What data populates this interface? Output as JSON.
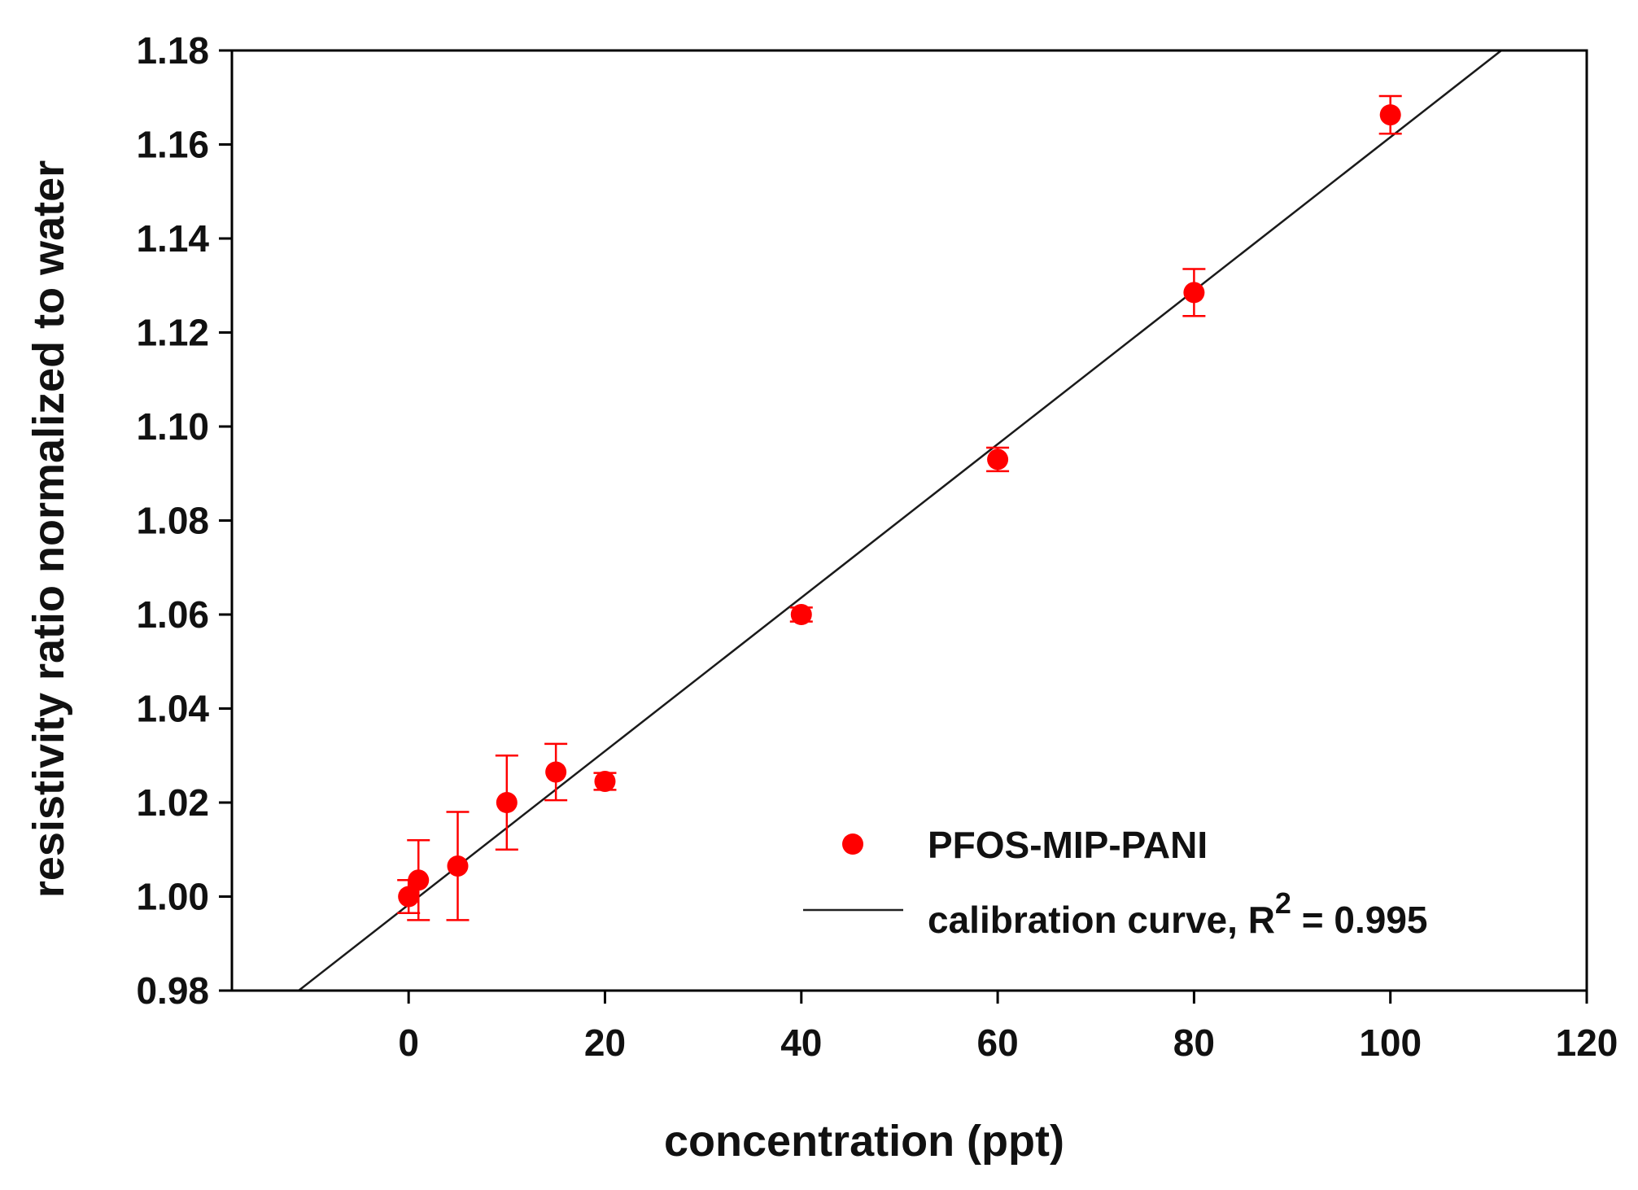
{
  "chart_data": {
    "type": "scatter",
    "title": "",
    "xlabel": "concentration (ppt)",
    "ylabel": "resistivity ratio normalized to water",
    "xlim": [
      -18,
      120
    ],
    "ylim": [
      0.98,
      1.18
    ],
    "xticks": [
      0,
      20,
      40,
      60,
      80,
      100,
      120
    ],
    "xtick_labels": [
      "0",
      "20",
      "40",
      "60",
      "80",
      "100",
      "120"
    ],
    "yticks": [
      0.98,
      1.0,
      1.02,
      1.04,
      1.06,
      1.08,
      1.1,
      1.12,
      1.14,
      1.16,
      1.18
    ],
    "ytick_labels": [
      "0.98",
      "1.00",
      "1.02",
      "1.04",
      "1.06",
      "1.08",
      "1.10",
      "1.12",
      "1.14",
      "1.16",
      "1.18"
    ],
    "grid": false,
    "legend_position": "bottom-right",
    "series": [
      {
        "name": "PFOS-MIP-PANI",
        "kind": "scatter-errorbar",
        "color": "#ff0000",
        "x": [
          0,
          1,
          5,
          10,
          15,
          20,
          40,
          60,
          80,
          100
        ],
        "y": [
          1.0,
          1.0035,
          1.0065,
          1.02,
          1.0265,
          1.0245,
          1.06,
          1.093,
          1.1285,
          1.1663
        ],
        "err": [
          0.0035,
          0.0085,
          0.0115,
          0.01,
          0.006,
          0.0018,
          0.0015,
          0.0025,
          0.005,
          0.004
        ]
      },
      {
        "name": "calibration curve, R",
        "name_superscript": "2",
        "name_suffix": " = 0.995",
        "kind": "line",
        "color": "#000000",
        "x": [
          -11.2,
          111.3
        ],
        "y": [
          0.98,
          1.18
        ]
      }
    ]
  }
}
